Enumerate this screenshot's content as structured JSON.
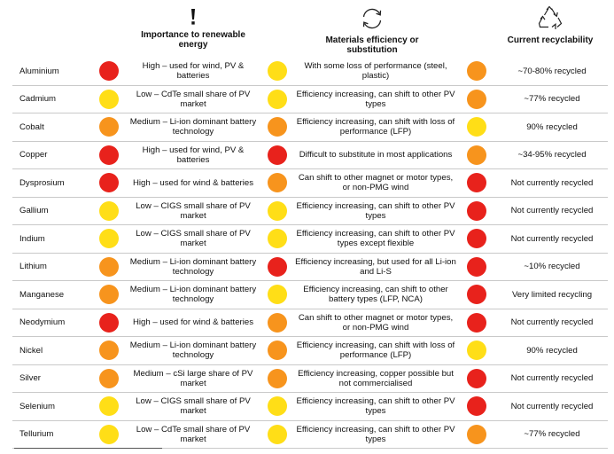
{
  "colors": {
    "High": "#e8221c",
    "Medium": "#f7941d",
    "Low": "#ffde17"
  },
  "headers": {
    "importance": {
      "icon": "exclamation-icon",
      "title": "Importance to renewable energy"
    },
    "substitution": {
      "icon": "refresh-arrows-icon",
      "title": "Materials efficiency or substitution"
    },
    "recyclability": {
      "icon": "recycle-icon",
      "title": "Current recyclability"
    }
  },
  "rows": [
    {
      "name": "Aluminium",
      "importance_level": "High",
      "importance": "High – used for wind, PV & batteries",
      "substitution_level": "Low",
      "substitution": "With some loss of performance (steel, plastic)",
      "recyclability_level": "Medium",
      "recyclability": "~70-80% recycled"
    },
    {
      "name": "Cadmium",
      "importance_level": "Low",
      "importance": "Low – CdTe small share of PV market",
      "substitution_level": "Low",
      "substitution": "Efficiency increasing, can shift to other PV types",
      "recyclability_level": "Medium",
      "recyclability": "~77% recycled"
    },
    {
      "name": "Cobalt",
      "importance_level": "Medium",
      "importance": "Medium – Li-ion dominant battery technology",
      "substitution_level": "Medium",
      "substitution": "Efficiency increasing, can shift with loss of performance (LFP)",
      "recyclability_level": "Low",
      "recyclability": "90% recycled"
    },
    {
      "name": "Copper",
      "importance_level": "High",
      "importance": "High – used for wind, PV & batteries",
      "substitution_level": "High",
      "substitution": "Difficult to substitute in most applications",
      "recyclability_level": "Medium",
      "recyclability": "~34-95% recycled"
    },
    {
      "name": "Dysprosium",
      "importance_level": "High",
      "importance": "High – used for wind & batteries",
      "substitution_level": "Medium",
      "substitution": "Can shift to other magnet or motor types, or non-PMG wind",
      "recyclability_level": "High",
      "recyclability": "Not currently recycled"
    },
    {
      "name": "Gallium",
      "importance_level": "Low",
      "importance": "Low – CIGS small share of PV market",
      "substitution_level": "Low",
      "substitution": "Efficiency increasing, can shift to other PV types",
      "recyclability_level": "High",
      "recyclability": "Not currently recycled"
    },
    {
      "name": "Indium",
      "importance_level": "Low",
      "importance": "Low – CIGS small share of PV market",
      "substitution_level": "Low",
      "substitution": "Efficiency increasing, can shift to other PV types except flexible",
      "recyclability_level": "High",
      "recyclability": "Not currently recycled"
    },
    {
      "name": "Lithium",
      "importance_level": "Medium",
      "importance": "Medium – Li-ion dominant battery technology",
      "substitution_level": "High",
      "substitution": "Efficiency increasing, but used for all Li-ion and Li-S",
      "recyclability_level": "High",
      "recyclability": "~10% recycled"
    },
    {
      "name": "Manganese",
      "importance_level": "Medium",
      "importance": "Medium – Li-ion dominant battery technology",
      "substitution_level": "Low",
      "substitution": "Efficiency increasing, can shift to other battery types (LFP, NCA)",
      "recyclability_level": "High",
      "recyclability": "Very limited recycling"
    },
    {
      "name": "Neodymium",
      "importance_level": "High",
      "importance": "High – used for wind & batteries",
      "substitution_level": "Medium",
      "substitution": "Can shift to other magnet or motor types, or non-PMG wind",
      "recyclability_level": "High",
      "recyclability": "Not currently recycled"
    },
    {
      "name": "Nickel",
      "importance_level": "Medium",
      "importance": "Medium – Li-ion dominant battery technology",
      "substitution_level": "Medium",
      "substitution": "Efficiency increasing, can shift with loss of performance (LFP)",
      "recyclability_level": "Low",
      "recyclability": "90% recycled"
    },
    {
      "name": "Silver",
      "importance_level": "Medium",
      "importance": "Medium – cSi large share of PV market",
      "substitution_level": "Medium",
      "substitution": "Efficiency increasing, copper possible but not commercialised",
      "recyclability_level": "High",
      "recyclability": "Not currently recycled"
    },
    {
      "name": "Selenium",
      "importance_level": "Low",
      "importance": "Low – CIGS small share of PV market",
      "substitution_level": "Low",
      "substitution": "Efficiency increasing, can shift to other PV types",
      "recyclability_level": "High",
      "recyclability": "Not currently recycled"
    },
    {
      "name": "Tellurium",
      "importance_level": "Low",
      "importance": "Low – CdTe small share of PV market",
      "substitution_level": "Low",
      "substitution": "Efficiency increasing, can shift to other PV types",
      "recyclability_level": "Medium",
      "recyclability": "~77% recycled"
    }
  ]
}
